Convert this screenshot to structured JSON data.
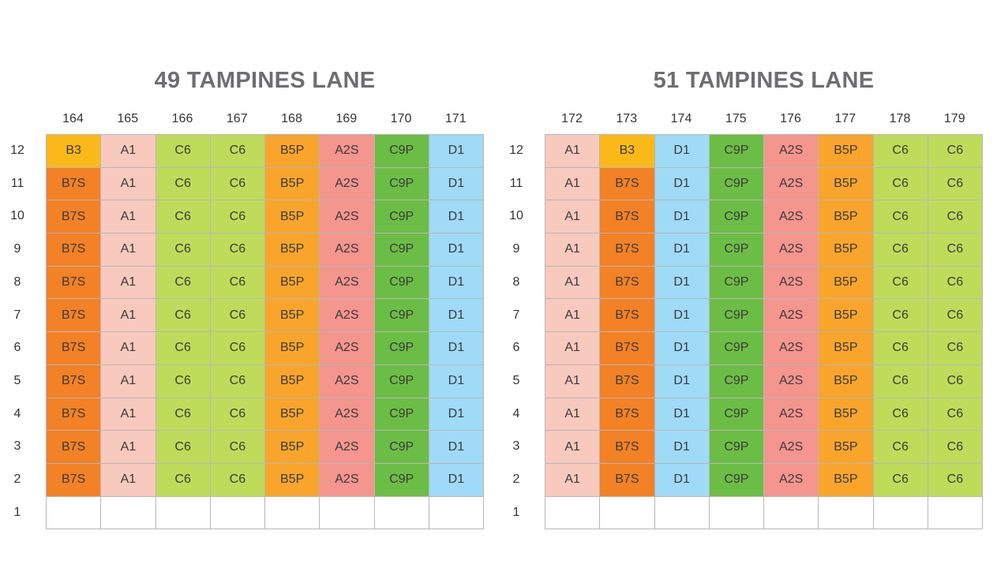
{
  "colors": {
    "A1": "#f8c9bd",
    "A2S": "#f4958e",
    "B3": "#fbb919",
    "B5P": "#f9a52c",
    "B7S": "#f38126",
    "C6": "#bedc5a",
    "C9P": "#6cbd45",
    "D1": "#9fdaf7",
    "empty": "#ffffff"
  },
  "floors": [
    "12",
    "11",
    "10",
    "9",
    "8",
    "7",
    "6",
    "5",
    "4",
    "3",
    "2",
    "1"
  ],
  "blocks": [
    {
      "title": "49 TAMPINES LANE",
      "units": [
        "164",
        "165",
        "166",
        "167",
        "168",
        "169",
        "170",
        "171"
      ],
      "rows": [
        [
          "B3",
          "A1",
          "C6",
          "C6",
          "B5P",
          "A2S",
          "C9P",
          "D1"
        ],
        [
          "B7S",
          "A1",
          "C6",
          "C6",
          "B5P",
          "A2S",
          "C9P",
          "D1"
        ],
        [
          "B7S",
          "A1",
          "C6",
          "C6",
          "B5P",
          "A2S",
          "C9P",
          "D1"
        ],
        [
          "B7S",
          "A1",
          "C6",
          "C6",
          "B5P",
          "A2S",
          "C9P",
          "D1"
        ],
        [
          "B7S",
          "A1",
          "C6",
          "C6",
          "B5P",
          "A2S",
          "C9P",
          "D1"
        ],
        [
          "B7S",
          "A1",
          "C6",
          "C6",
          "B5P",
          "A2S",
          "C9P",
          "D1"
        ],
        [
          "B7S",
          "A1",
          "C6",
          "C6",
          "B5P",
          "A2S",
          "C9P",
          "D1"
        ],
        [
          "B7S",
          "A1",
          "C6",
          "C6",
          "B5P",
          "A2S",
          "C9P",
          "D1"
        ],
        [
          "B7S",
          "A1",
          "C6",
          "C6",
          "B5P",
          "A2S",
          "C9P",
          "D1"
        ],
        [
          "B7S",
          "A1",
          "C6",
          "C6",
          "B5P",
          "A2S",
          "C9P",
          "D1"
        ],
        [
          "B7S",
          "A1",
          "C6",
          "C6",
          "B5P",
          "A2S",
          "C9P",
          "D1"
        ],
        [
          "",
          "",
          "",
          "",
          "",
          "",
          "",
          ""
        ]
      ]
    },
    {
      "title": "51 TAMPINES LANE",
      "units": [
        "172",
        "173",
        "174",
        "175",
        "176",
        "177",
        "178",
        "179"
      ],
      "rows": [
        [
          "A1",
          "B3",
          "D1",
          "C9P",
          "A2S",
          "B5P",
          "C6",
          "C6"
        ],
        [
          "A1",
          "B7S",
          "D1",
          "C9P",
          "A2S",
          "B5P",
          "C6",
          "C6"
        ],
        [
          "A1",
          "B7S",
          "D1",
          "C9P",
          "A2S",
          "B5P",
          "C6",
          "C6"
        ],
        [
          "A1",
          "B7S",
          "D1",
          "C9P",
          "A2S",
          "B5P",
          "C6",
          "C6"
        ],
        [
          "A1",
          "B7S",
          "D1",
          "C9P",
          "A2S",
          "B5P",
          "C6",
          "C6"
        ],
        [
          "A1",
          "B7S",
          "D1",
          "C9P",
          "A2S",
          "B5P",
          "C6",
          "C6"
        ],
        [
          "A1",
          "B7S",
          "D1",
          "C9P",
          "A2S",
          "B5P",
          "C6",
          "C6"
        ],
        [
          "A1",
          "B7S",
          "D1",
          "C9P",
          "A2S",
          "B5P",
          "C6",
          "C6"
        ],
        [
          "A1",
          "B7S",
          "D1",
          "C9P",
          "A2S",
          "B5P",
          "C6",
          "C6"
        ],
        [
          "A1",
          "B7S",
          "D1",
          "C9P",
          "A2S",
          "B5P",
          "C6",
          "C6"
        ],
        [
          "A1",
          "B7S",
          "D1",
          "C9P",
          "A2S",
          "B5P",
          "C6",
          "C6"
        ],
        [
          "",
          "",
          "",
          "",
          "",
          "",
          "",
          ""
        ]
      ]
    }
  ]
}
